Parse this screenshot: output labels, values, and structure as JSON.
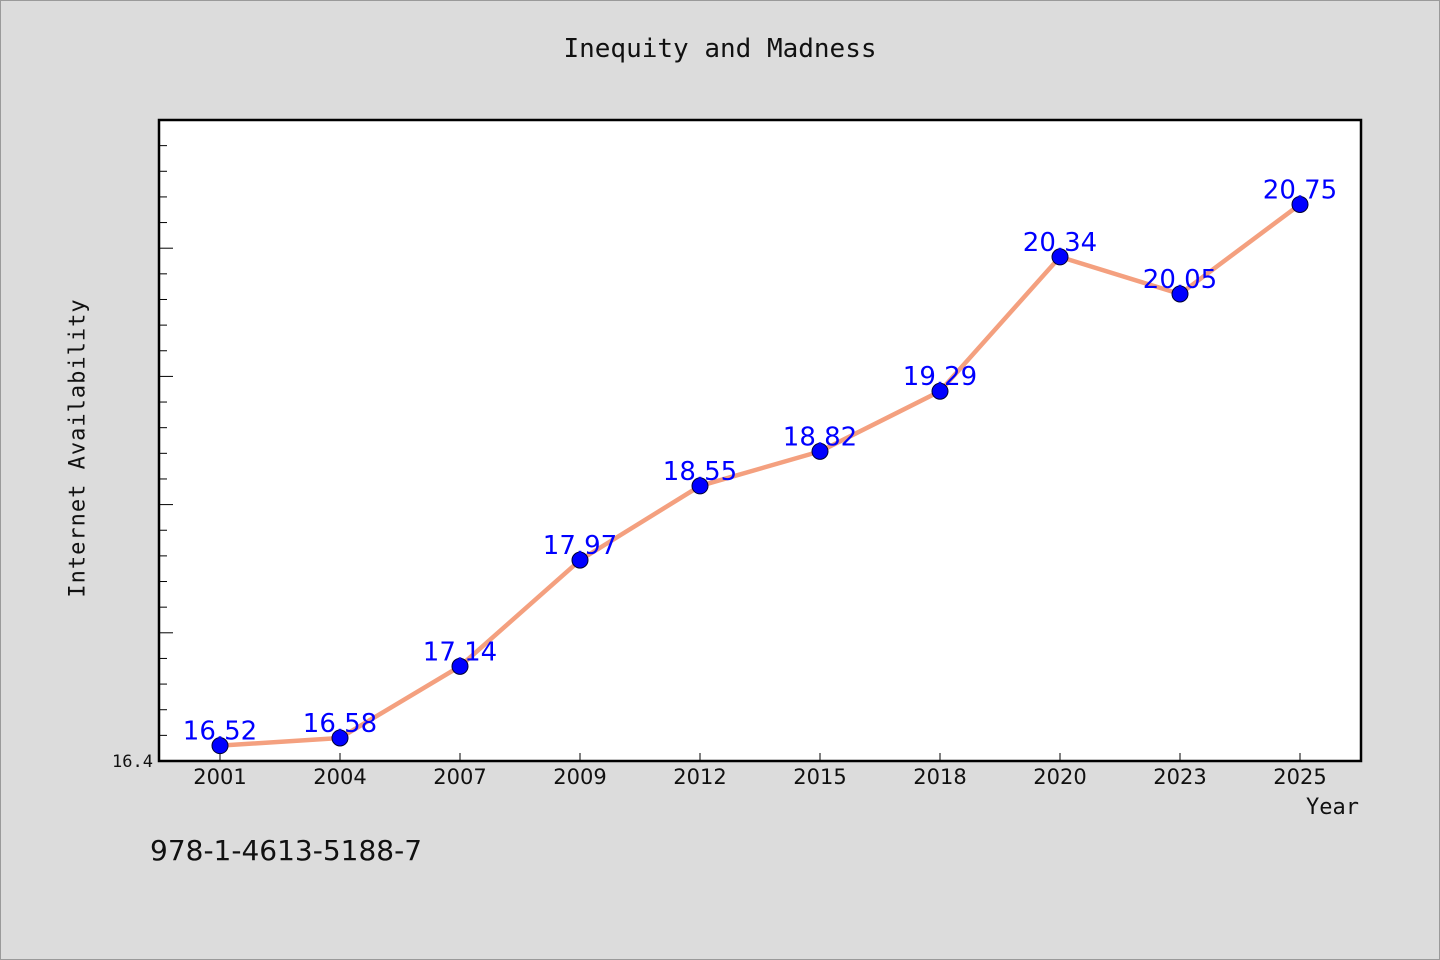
{
  "chart_data": {
    "type": "line",
    "title": "Inequity and Madness",
    "xlabel": "Year",
    "ylabel": "Internet Availability",
    "categories": [
      "2001",
      "2004",
      "2007",
      "2009",
      "2012",
      "2015",
      "2018",
      "2020",
      "2023",
      "2025"
    ],
    "series": [
      {
        "values": [
          16.52,
          16.58,
          17.14,
          17.97,
          18.55,
          18.82,
          19.29,
          20.34,
          20.05,
          20.75
        ]
      }
    ],
    "data_labels": [
      "16.52",
      "16.58",
      "17.14",
      "17.97",
      "18.55",
      "18.82",
      "19.29",
      "20.34",
      "20.05",
      "20.75"
    ],
    "ylim": [
      16.4,
      21.41
    ],
    "y_tick_label": "16.4",
    "grid": false,
    "legend": "none",
    "colors": {
      "line": "#f4a07f",
      "marker": "#0000ff",
      "label": "#0000ff",
      "background": "#dcdcdc",
      "plot_background": "#ffffff"
    }
  },
  "footer": {
    "isbn": "978-1-4613-5188-7"
  }
}
